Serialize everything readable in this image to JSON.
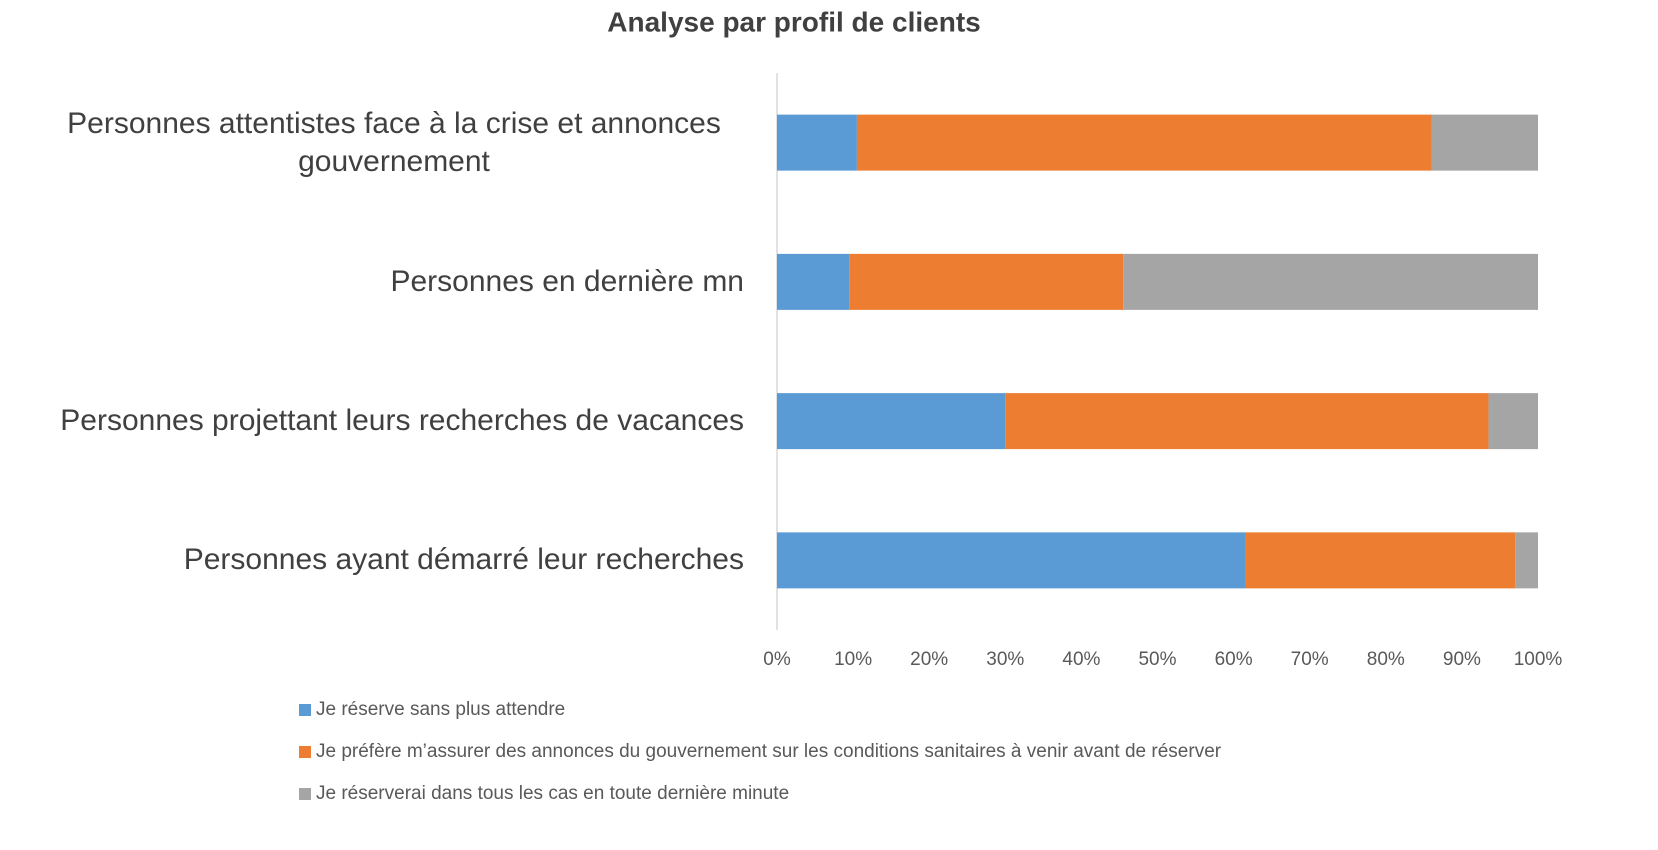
{
  "chart_data": {
    "type": "stacked_bar_horizontal",
    "title": "Analyse par profil  de clients",
    "categories": [
      "Personnes attentistes face à la crise et annonces gouvernement",
      "Personnes en dernière mn",
      "Personnes projettant leurs recherches de vacances",
      "Personnes ayant démarré leur recherches"
    ],
    "series": [
      {
        "name": "Je réserve sans plus attendre",
        "color": "#5b9bd5",
        "values": [
          10.5,
          9.5,
          30,
          61.5
        ]
      },
      {
        "name": "Je préfère m’assurer des annonces du gouvernement sur les conditions sanitaires à venir avant de réserver",
        "color": "#ed7d31",
        "values": [
          75.5,
          36,
          63.5,
          35.5
        ]
      },
      {
        "name": "Je réserverai dans tous les cas en toute dernière minute",
        "color": "#a5a5a5",
        "values": [
          14,
          54.5,
          6.5,
          3
        ]
      }
    ],
    "xlim": [
      0,
      100
    ],
    "xticks": [
      {
        "value": 0,
        "label": "0%"
      },
      {
        "value": 10,
        "label": "10%"
      },
      {
        "value": 20,
        "label": "20%"
      },
      {
        "value": 30,
        "label": "30%"
      },
      {
        "value": 40,
        "label": "40%"
      },
      {
        "value": 50,
        "label": "50%"
      },
      {
        "value": 60,
        "label": "60%"
      },
      {
        "value": 70,
        "label": "70%"
      },
      {
        "value": 80,
        "label": "80%"
      },
      {
        "value": 90,
        "label": "90%"
      },
      {
        "value": 100,
        "label": "100%"
      }
    ],
    "legend": "bottom"
  }
}
